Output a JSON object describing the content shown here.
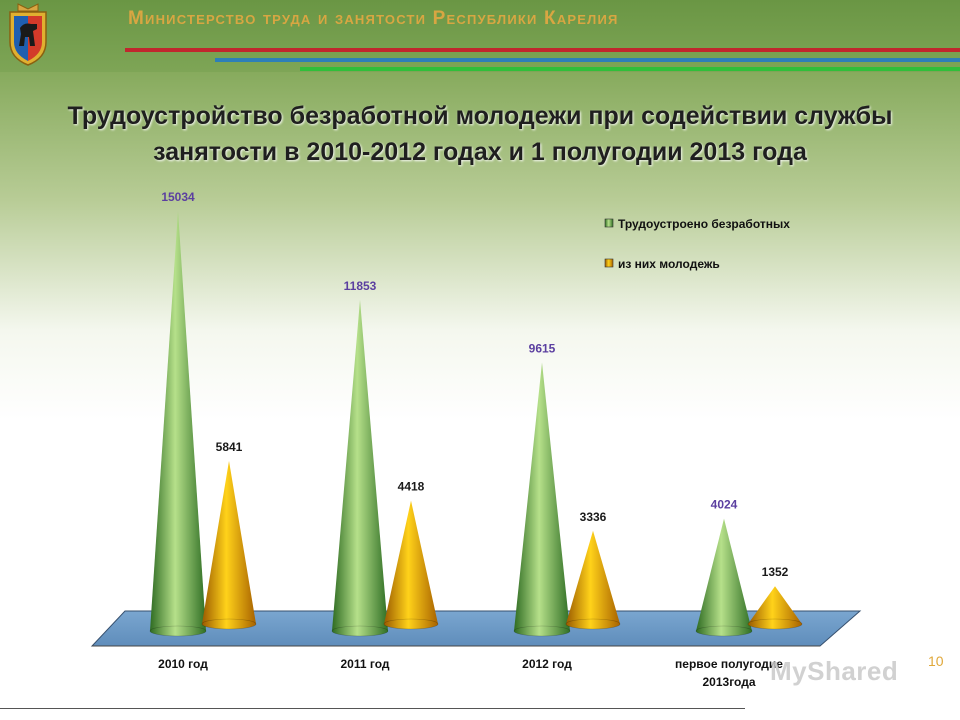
{
  "header": {
    "ministry": "Министерство труда и занятости Республики Карелия"
  },
  "title_lines": [
    "Трудоустройство безработной молодежи при содействии службы",
    "занятости в 2010-2012 годах и 1 полугодии 2013 года"
  ],
  "slide_number": "10",
  "watermark": "MyShared",
  "colors": {
    "series1": "#4f8f3a",
    "series2": "#e8a010",
    "floor": "#6f9ac4",
    "label1": "#5b3fa0",
    "label2": "#1a1a1a"
  },
  "chart_data": {
    "type": "bar",
    "shape": "cone",
    "categories": [
      "2010 год",
      "2011 год",
      "2012 год",
      "первое полугодие 2013года"
    ],
    "series": [
      {
        "name": "Трудоустроено безработных",
        "values": [
          15034,
          11853,
          9615,
          4024
        ]
      },
      {
        "name": "из них молодежь",
        "values": [
          5841,
          4418,
          3336,
          1352
        ]
      }
    ],
    "data_labels": true,
    "legend_position": "top-right",
    "grid": false
  }
}
